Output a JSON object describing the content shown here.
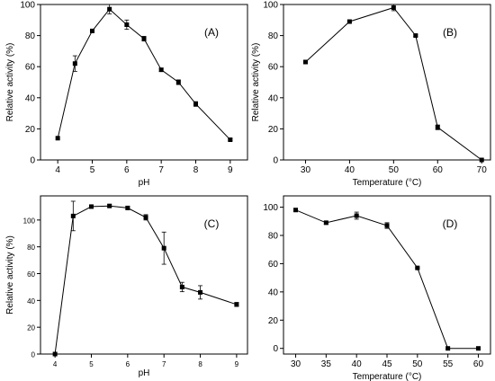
{
  "chart_data": [
    {
      "type": "line",
      "panel_label": "(A)",
      "xlabel": "pH",
      "ylabel": "Relative activity (%)",
      "xlim": [
        3.5,
        9.5
      ],
      "ylim": [
        0,
        100
      ],
      "xticks": [
        "4",
        "5",
        "6",
        "7",
        "8",
        "9"
      ],
      "yticks": [
        "0",
        "20",
        "40",
        "60",
        "80",
        "100"
      ],
      "xtick_values": [
        4,
        5,
        6,
        7,
        8,
        9
      ],
      "ytick_values": [
        0,
        20,
        40,
        60,
        80,
        100
      ],
      "x": [
        4,
        4.5,
        5,
        5.5,
        6,
        6.5,
        7,
        7.5,
        8,
        9
      ],
      "y": [
        14,
        62,
        83,
        97,
        87,
        78,
        58,
        50,
        36,
        13
      ],
      "err": [
        0,
        5,
        1,
        3,
        3,
        1.5,
        1,
        1.5,
        1.5,
        0.5
      ]
    },
    {
      "type": "line",
      "panel_label": "(B)",
      "xlabel": "Temperature (°C)",
      "ylabel": "Relative activity (%)",
      "xlim": [
        25,
        72
      ],
      "ylim": [
        0,
        100
      ],
      "xticks": [
        "30",
        "40",
        "50",
        "60",
        "70"
      ],
      "yticks": [
        "0",
        "20",
        "40",
        "60",
        "80",
        "100"
      ],
      "xtick_values": [
        30,
        40,
        50,
        60,
        70
      ],
      "ytick_values": [
        0,
        20,
        40,
        60,
        80,
        100
      ],
      "x": [
        30,
        40,
        50,
        55,
        60,
        70
      ],
      "y": [
        63,
        89,
        98,
        80,
        21,
        0
      ],
      "err": [
        1,
        0.5,
        2,
        0.5,
        1.5,
        0
      ]
    },
    {
      "type": "line",
      "panel_label": "(C)",
      "xlabel": "pH",
      "ylabel": "Relative activity (%)",
      "xlim": [
        3.6,
        9.3
      ],
      "ylim": [
        0,
        118
      ],
      "xticks": [
        "4",
        "5",
        "6",
        "7",
        "8",
        "9"
      ],
      "yticks": [
        "0",
        "20",
        "40",
        "60",
        "80",
        "100"
      ],
      "xtick_values": [
        4,
        5,
        6,
        7,
        8,
        9
      ],
      "ytick_values": [
        0,
        20,
        40,
        60,
        80,
        100
      ],
      "x": [
        4,
        4.5,
        5,
        5.5,
        6,
        6.5,
        7,
        7.5,
        8,
        9
      ],
      "y": [
        0,
        103,
        110,
        110.5,
        109,
        102,
        79,
        50,
        46,
        37
      ],
      "err": [
        0,
        11,
        1,
        1,
        1,
        2,
        12,
        3.5,
        5,
        1.5
      ]
    },
    {
      "type": "line",
      "panel_label": "(D)",
      "xlabel": "Temperature (°C)",
      "ylabel": "",
      "xlim": [
        28,
        62
      ],
      "ylim": [
        -4,
        108
      ],
      "xticks": [
        "30",
        "35",
        "40",
        "45",
        "50",
        "55",
        "60"
      ],
      "yticks": [
        "0",
        "20",
        "40",
        "60",
        "80",
        "100"
      ],
      "xtick_values": [
        30,
        35,
        40,
        45,
        50,
        55,
        60
      ],
      "ytick_values": [
        0,
        20,
        40,
        60,
        80,
        100
      ],
      "x": [
        30,
        35,
        40,
        45,
        50,
        55,
        60
      ],
      "y": [
        98,
        89,
        94,
        87,
        57,
        0,
        0
      ],
      "err": [
        1,
        1,
        2.5,
        2,
        0.5,
        0,
        0
      ]
    }
  ]
}
